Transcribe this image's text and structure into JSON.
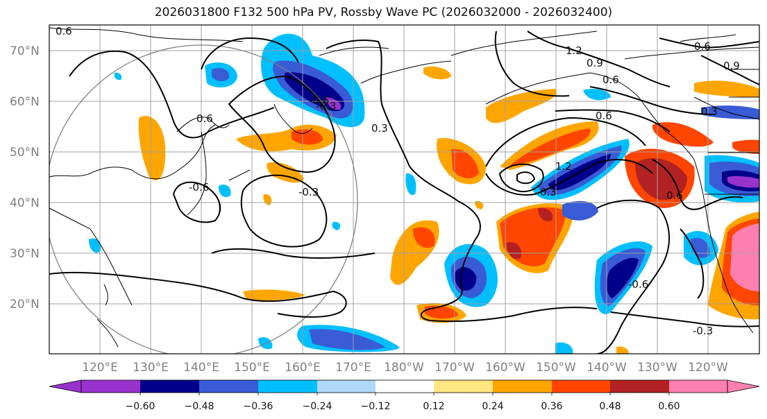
{
  "title": "2026031800 F132 500 hPa PV, Rossby Wave PC (2026032000 - 2026032400)",
  "lat_labels": [
    "70°N",
    "60°N",
    "50°N",
    "40°N",
    "30°N",
    "20°N"
  ],
  "lon_labels": [
    "120°E",
    "130°E",
    "140°E",
    "150°E",
    "160°E",
    "170°E",
    "180°W",
    "170°W",
    "160°W",
    "150°W",
    "140°W",
    "130°W",
    "120°W"
  ],
  "colorbar": {
    "ticks": [
      "−0.60",
      "−0.48",
      "−0.36",
      "−0.24",
      "−0.12",
      "0.12",
      "0.24",
      "0.36",
      "0.48",
      "0.60"
    ],
    "colors": [
      "#9932cc",
      "#00008b",
      "#3a5bd6",
      "#00bfff",
      "#add8f6",
      "#ffffff",
      "#ffe680",
      "#ffa500",
      "#ff4500",
      "#b22222",
      "#ff80b0"
    ]
  },
  "contour_labels": [
    "0.6",
    "-0.6",
    "-0.3",
    "-0.3",
    "0.3",
    "1.2",
    "0.9",
    "0.6",
    "0.6",
    "1.2",
    "0.3",
    "0.6",
    "-0.3",
    "0.6",
    "0.9",
    "0.3",
    "-0.6",
    "-0.6",
    "0.6"
  ]
}
